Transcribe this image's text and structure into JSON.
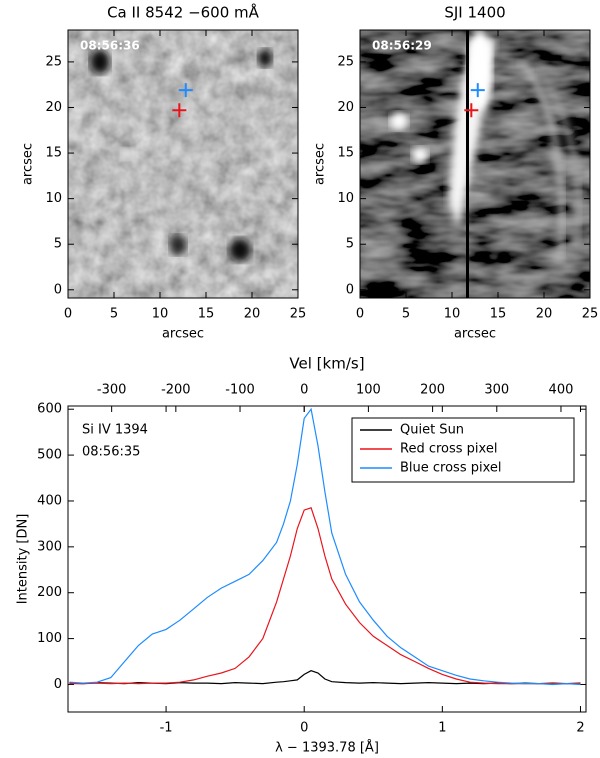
{
  "chart_data": [
    {
      "type": "image",
      "title": "Ca II 8542 −600 mÅ",
      "annotation": "08:56:36",
      "xlabel": "arcsec",
      "ylabel": "arcsec",
      "xlim": [
        0,
        25
      ],
      "ylim": [
        -0.9,
        28.5
      ],
      "xticks": [
        0,
        5,
        10,
        15,
        20,
        25
      ],
      "yticks": [
        0,
        5,
        10,
        15,
        20,
        25
      ],
      "markers": [
        {
          "color": "#e8141c",
          "x": 12.1,
          "y": 19.7
        },
        {
          "color": "#1e8cff",
          "x": 12.8,
          "y": 21.9
        }
      ]
    },
    {
      "type": "image",
      "title": "SJI 1400",
      "annotation": "08:56:29",
      "xlabel": "arcsec",
      "ylabel": "arcsec",
      "xlim": [
        0,
        25
      ],
      "ylim": [
        -0.9,
        28.5
      ],
      "xticks": [
        0,
        5,
        10,
        15,
        20,
        25
      ],
      "yticks": [
        0,
        5,
        10,
        15,
        20,
        25
      ],
      "markers": [
        {
          "color": "#e8141c",
          "x": 12.1,
          "y": 19.7
        },
        {
          "color": "#1e8cff",
          "x": 12.8,
          "y": 21.9
        }
      ]
    },
    {
      "type": "line",
      "annotations": [
        "Si IV 1394",
        "08:56:35"
      ],
      "xlabel": "λ − 1393.78 [Å]",
      "ylabel": "Intensity [DN]",
      "x2label": "Vel [km/s]",
      "xlim": [
        -1.71,
        2.04
      ],
      "ylim": [
        -60,
        607
      ],
      "xticks": [
        -1,
        0,
        1,
        2
      ],
      "yticks": [
        0,
        100,
        200,
        300,
        400,
        500,
        600
      ],
      "x2lim": [
        -368,
        439
      ],
      "x2ticks": [
        -300,
        -200,
        -100,
        0,
        100,
        200,
        300,
        400
      ],
      "legend": "upper right",
      "x": [
        -1.7,
        -1.6,
        -1.5,
        -1.4,
        -1.3,
        -1.2,
        -1.1,
        -1.0,
        -0.9,
        -0.8,
        -0.7,
        -0.6,
        -0.5,
        -0.4,
        -0.3,
        -0.2,
        -0.15,
        -0.1,
        -0.05,
        0,
        0.05,
        0.1,
        0.15,
        0.2,
        0.3,
        0.4,
        0.5,
        0.6,
        0.7,
        0.8,
        0.9,
        1.0,
        1.1,
        1.2,
        1.3,
        1.4,
        1.5,
        1.6,
        1.7,
        1.8,
        1.9,
        2.0
      ],
      "series": [
        {
          "name": "Quiet Sun",
          "color": "#000000",
          "values": [
            3,
            2,
            4,
            3,
            2,
            4,
            3,
            2,
            4,
            3,
            3,
            2,
            4,
            3,
            2,
            5,
            6,
            8,
            10,
            22,
            30,
            25,
            12,
            6,
            4,
            3,
            4,
            3,
            2,
            3,
            4,
            3,
            2,
            3,
            2,
            3,
            2,
            3,
            2,
            3,
            2,
            3
          ]
        },
        {
          "name": "Red cross pixel",
          "color": "#e8141c",
          "values": [
            2,
            2,
            3,
            2,
            3,
            2,
            3,
            3,
            5,
            10,
            18,
            25,
            35,
            60,
            100,
            180,
            230,
            280,
            340,
            380,
            385,
            340,
            280,
            230,
            175,
            135,
            105,
            85,
            65,
            50,
            35,
            22,
            12,
            5,
            3,
            2,
            2,
            2,
            2,
            2,
            2,
            2
          ]
        },
        {
          "name": "Blue cross pixel",
          "color": "#1e8cff",
          "values": [
            5,
            3,
            5,
            15,
            50,
            85,
            110,
            120,
            140,
            165,
            190,
            210,
            225,
            240,
            270,
            310,
            350,
            400,
            480,
            580,
            600,
            520,
            420,
            330,
            240,
            180,
            140,
            105,
            80,
            60,
            40,
            30,
            20,
            12,
            8,
            5,
            3,
            2,
            2,
            0,
            2,
            0
          ]
        }
      ]
    }
  ]
}
